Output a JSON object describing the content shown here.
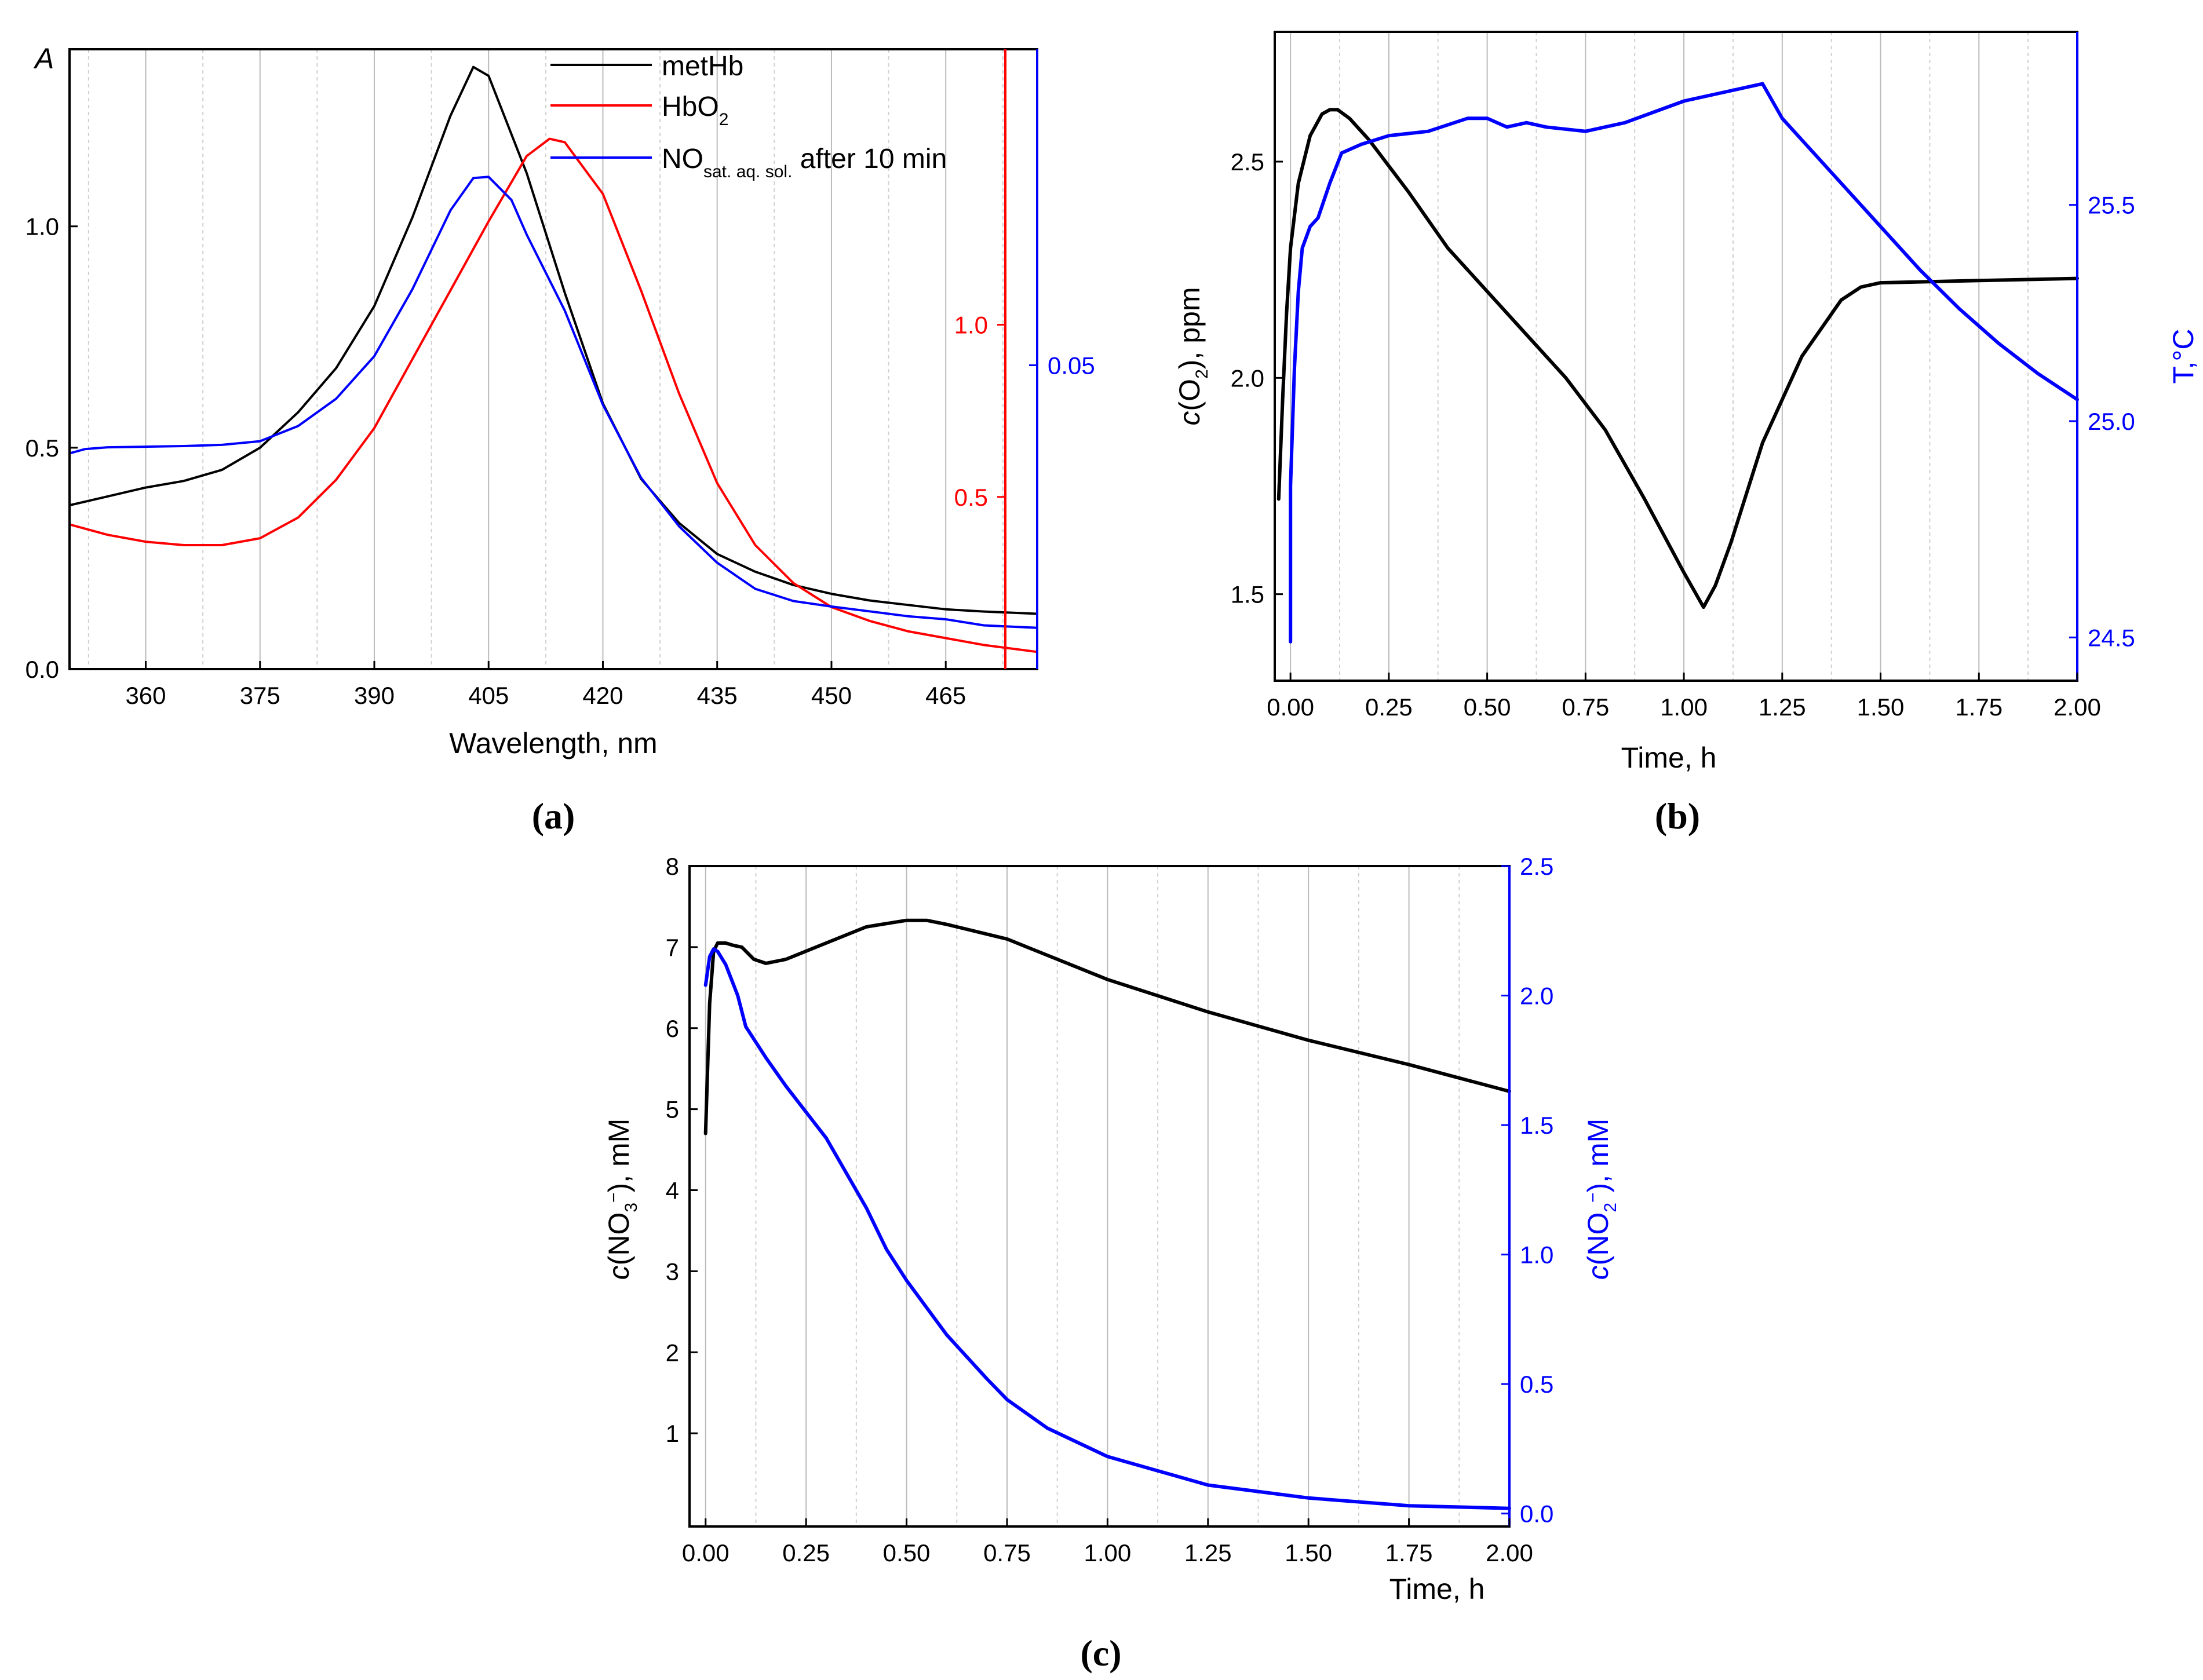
{
  "chart_data": [
    {
      "id": "a",
      "type": "line",
      "panel_label": "(a)",
      "xlabel": "Wavelength, nm",
      "ylabel": "A",
      "xlim": [
        350,
        477
      ],
      "x_ticks": [
        360,
        375,
        390,
        405,
        420,
        435,
        450,
        465
      ],
      "y_axes": [
        {
          "name": "left",
          "color": "#000000",
          "ylim": [
            0.0,
            1.4
          ],
          "ticks": [
            0.0,
            0.5,
            1.0
          ],
          "tick_labels": [
            "0.0",
            "0.5",
            "1.0"
          ]
        },
        {
          "name": "right-red",
          "color": "#ff0000",
          "ylim": [
            0.0,
            1.8
          ],
          "ticks": [
            0.5,
            1.0
          ],
          "tick_labels": [
            "0.5",
            "1.0"
          ]
        },
        {
          "name": "right-blue",
          "color": "#0000ff",
          "ylim": [
            0.0,
            0.102
          ],
          "ticks": [
            0.05
          ],
          "tick_labels": [
            "0.05"
          ]
        }
      ],
      "legend": {
        "position": "top-right",
        "entries": [
          {
            "main": "metHb",
            "sub": "",
            "tail": "",
            "color": "#000000"
          },
          {
            "main": "HbO",
            "sub": "2",
            "tail": "",
            "color": "#ff0000"
          },
          {
            "main": "NO",
            "sub": "sat. aq. sol.",
            "tail": " after 10 min",
            "color": "#0000ff"
          }
        ]
      },
      "series": [
        {
          "name": "metHb",
          "axis": "left",
          "color": "#000000",
          "x": [
            350,
            355,
            360,
            365,
            370,
            375,
            380,
            385,
            390,
            395,
            400,
            403,
            405,
            410,
            415,
            420,
            425,
            430,
            435,
            440,
            445,
            450,
            455,
            460,
            465,
            470,
            477
          ],
          "y": [
            0.37,
            0.39,
            0.41,
            0.425,
            0.45,
            0.5,
            0.58,
            0.68,
            0.82,
            1.02,
            1.25,
            1.36,
            1.34,
            1.12,
            0.85,
            0.6,
            0.43,
            0.33,
            0.26,
            0.22,
            0.19,
            0.17,
            0.155,
            0.145,
            0.135,
            0.13,
            0.125
          ]
        },
        {
          "name": "HbO2",
          "axis": "right-red",
          "color": "#ff0000",
          "x": [
            350,
            355,
            360,
            365,
            370,
            375,
            380,
            385,
            390,
            395,
            400,
            405,
            410,
            413,
            415,
            420,
            425,
            430,
            435,
            440,
            445,
            450,
            455,
            460,
            465,
            470,
            477
          ],
          "y": [
            0.42,
            0.39,
            0.37,
            0.36,
            0.36,
            0.38,
            0.44,
            0.55,
            0.7,
            0.9,
            1.1,
            1.3,
            1.49,
            1.54,
            1.53,
            1.38,
            1.1,
            0.8,
            0.54,
            0.36,
            0.25,
            0.18,
            0.14,
            0.11,
            0.09,
            0.07,
            0.05
          ]
        },
        {
          "name": "NO sat. aq. sol. after 10 min",
          "axis": "right-blue",
          "color": "#0000ff",
          "x": [
            350,
            352,
            355,
            360,
            365,
            370,
            375,
            380,
            385,
            390,
            395,
            400,
            403,
            405,
            408,
            410,
            415,
            420,
            425,
            430,
            435,
            440,
            445,
            450,
            455,
            460,
            465,
            470,
            477
          ],
          "y": [
            0.0355,
            0.0362,
            0.0365,
            0.0366,
            0.0367,
            0.0369,
            0.0375,
            0.04,
            0.0445,
            0.0515,
            0.0625,
            0.0755,
            0.0808,
            0.081,
            0.0772,
            0.0715,
            0.059,
            0.0435,
            0.0315,
            0.0235,
            0.0175,
            0.0132,
            0.0112,
            0.0103,
            0.0095,
            0.0087,
            0.0082,
            0.0072,
            0.0068
          ]
        }
      ]
    },
    {
      "id": "b",
      "type": "line",
      "panel_label": "(b)",
      "xlabel": "Time, h",
      "ylabel_main": "c",
      "ylabel_rest": "(O",
      "ylabel_sub": "2",
      "ylabel_tail": "), ppm",
      "y2label": "T,°C",
      "xlim": [
        -0.04,
        2.0
      ],
      "x_ticks": [
        0.0,
        0.25,
        0.5,
        0.75,
        1.0,
        1.25,
        1.5,
        1.75,
        2.0
      ],
      "x_tick_labels": [
        "0.00",
        "0.25",
        "0.50",
        "0.75",
        "1.00",
        "1.25",
        "1.50",
        "1.75",
        "2.00"
      ],
      "y_axes": [
        {
          "name": "left",
          "color": "#000000",
          "ylim": [
            1.3,
            2.8
          ],
          "ticks": [
            1.5,
            2.0,
            2.5
          ],
          "tick_labels": [
            "1.5",
            "2.0",
            "2.5"
          ]
        },
        {
          "name": "right",
          "color": "#0000ff",
          "ylim": [
            24.4,
            25.9
          ],
          "ticks": [
            24.5,
            25.0,
            25.5
          ],
          "tick_labels": [
            "24.5",
            "25.0",
            "25.5"
          ]
        }
      ],
      "series": [
        {
          "name": "c(O2)",
          "axis": "left",
          "color": "#000000",
          "x": [
            -0.03,
            -0.02,
            -0.01,
            0.0,
            0.02,
            0.05,
            0.08,
            0.1,
            0.12,
            0.15,
            0.2,
            0.3,
            0.4,
            0.5,
            0.6,
            0.7,
            0.8,
            0.9,
            1.0,
            1.05,
            1.08,
            1.12,
            1.2,
            1.3,
            1.4,
            1.45,
            1.5,
            1.75,
            2.0
          ],
          "y": [
            1.72,
            1.95,
            2.15,
            2.3,
            2.45,
            2.56,
            2.61,
            2.62,
            2.62,
            2.6,
            2.55,
            2.43,
            2.3,
            2.2,
            2.1,
            2.0,
            1.88,
            1.72,
            1.55,
            1.47,
            1.52,
            1.62,
            1.85,
            2.05,
            2.18,
            2.21,
            2.22,
            2.225,
            2.23
          ]
        },
        {
          "name": "T",
          "axis": "right",
          "color": "#0000ff",
          "x": [
            0.0,
            0.0,
            0.01,
            0.02,
            0.03,
            0.05,
            0.07,
            0.1,
            0.13,
            0.18,
            0.25,
            0.35,
            0.45,
            0.5,
            0.55,
            0.6,
            0.65,
            0.75,
            0.85,
            1.0,
            1.1,
            1.2,
            1.25,
            1.35,
            1.5,
            1.6,
            1.7,
            1.8,
            1.9,
            2.0
          ],
          "y": [
            24.49,
            24.85,
            25.12,
            25.3,
            25.4,
            25.45,
            25.47,
            25.55,
            25.62,
            25.64,
            25.66,
            25.67,
            25.7,
            25.7,
            25.68,
            25.69,
            25.68,
            25.67,
            25.69,
            25.74,
            25.76,
            25.78,
            25.7,
            25.6,
            25.45,
            25.35,
            25.26,
            25.18,
            25.11,
            25.05
          ]
        }
      ]
    },
    {
      "id": "c",
      "type": "line",
      "panel_label": "(c)",
      "xlabel": "Time, h",
      "ylabel_main": "c",
      "ylabel_rest": "(NO",
      "ylabel_sub": "3",
      "ylabel_sup": "−",
      "ylabel_tail": "), mM",
      "y2label_main": "c",
      "y2label_rest": "(NO",
      "y2label_sub": "2",
      "y2label_sup": "−",
      "y2label_tail": "), mM",
      "xlim": [
        -0.04,
        2.0
      ],
      "x_ticks": [
        0.0,
        0.25,
        0.5,
        0.75,
        1.0,
        1.25,
        1.5,
        1.75,
        2.0
      ],
      "x_tick_labels": [
        "0.00",
        "0.25",
        "0.50",
        "0.75",
        "1.00",
        "1.25",
        "1.50",
        "1.75",
        "2.00"
      ],
      "y_axes": [
        {
          "name": "left",
          "color": "#000000",
          "ylim": [
            -0.15,
            8.0
          ],
          "ticks": [
            1,
            2,
            3,
            4,
            5,
            6,
            7,
            8
          ],
          "tick_labels": [
            "1",
            "2",
            "3",
            "4",
            "5",
            "6",
            "7",
            "8"
          ]
        },
        {
          "name": "right",
          "color": "#0000ff",
          "ylim": [
            -0.05,
            2.5
          ],
          "ticks": [
            0.0,
            0.5,
            1.0,
            1.5,
            2.0,
            2.5
          ],
          "tick_labels": [
            "0.0",
            "0.5",
            "1.0",
            "1.5",
            "2.0",
            "2.5"
          ]
        }
      ],
      "series": [
        {
          "name": "c(NO3-)",
          "axis": "left",
          "color": "#000000",
          "x": [
            0.0,
            0.01,
            0.02,
            0.03,
            0.05,
            0.07,
            0.09,
            0.12,
            0.15,
            0.2,
            0.3,
            0.4,
            0.5,
            0.55,
            0.6,
            0.75,
            0.85,
            1.0,
            1.25,
            1.5,
            1.75,
            2.0
          ],
          "y": [
            4.7,
            6.3,
            6.95,
            7.05,
            7.05,
            7.02,
            7.0,
            6.85,
            6.8,
            6.85,
            7.05,
            7.25,
            7.33,
            7.33,
            7.28,
            7.1,
            6.9,
            6.6,
            6.2,
            5.85,
            5.55,
            5.22
          ]
        },
        {
          "name": "c(NO2-)",
          "axis": "right",
          "color": "#0000ff",
          "x": [
            0.0,
            0.01,
            0.02,
            0.03,
            0.05,
            0.08,
            0.1,
            0.15,
            0.2,
            0.3,
            0.4,
            0.45,
            0.5,
            0.6,
            0.7,
            0.75,
            0.85,
            1.0,
            1.25,
            1.5,
            1.75,
            2.0
          ],
          "y": [
            2.04,
            2.15,
            2.18,
            2.17,
            2.12,
            2.0,
            1.88,
            1.76,
            1.65,
            1.45,
            1.18,
            1.02,
            0.9,
            0.69,
            0.52,
            0.44,
            0.33,
            0.22,
            0.11,
            0.06,
            0.03,
            0.02
          ]
        }
      ]
    }
  ]
}
